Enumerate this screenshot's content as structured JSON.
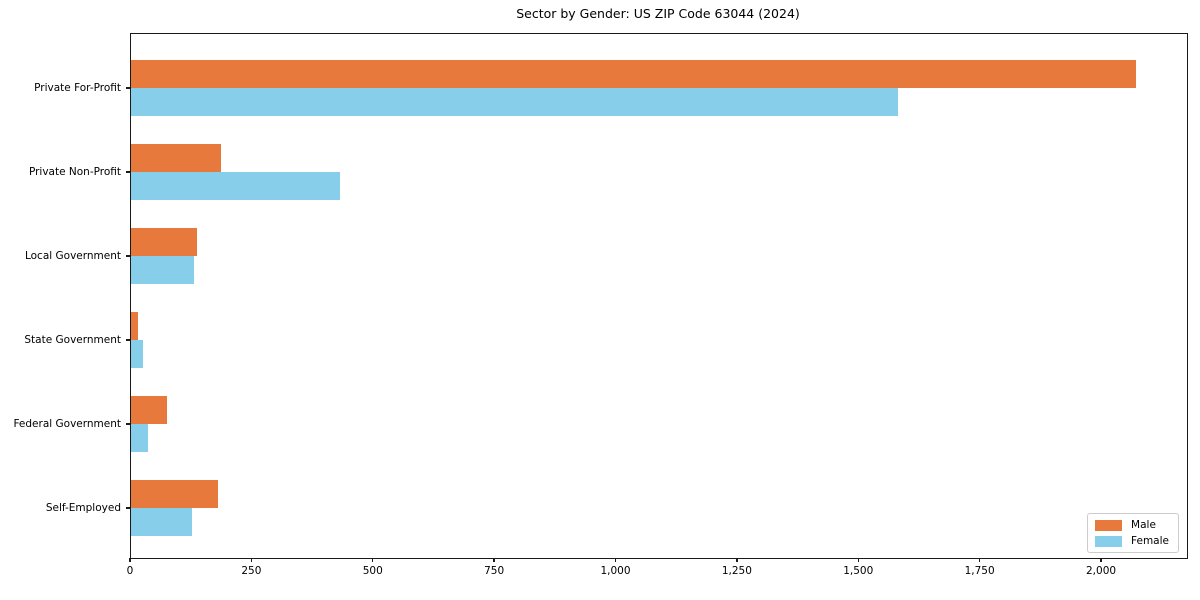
{
  "chart_data": {
    "type": "bar",
    "orientation": "horizontal",
    "title": "Sector by Gender: US ZIP Code 63044 (2024)",
    "categories": [
      "Private For-Profit",
      "Private Non-Profit",
      "Local Government",
      "State Government",
      "Federal Government",
      "Self-Employed"
    ],
    "series": [
      {
        "name": "Male",
        "color": "#E8793C",
        "values": [
          2070,
          185,
          135,
          15,
          75,
          180
        ]
      },
      {
        "name": "Female",
        "color": "#87CEEB",
        "values": [
          1580,
          430,
          130,
          25,
          35,
          125
        ]
      }
    ],
    "xlabel": "",
    "ylabel": "",
    "xlim": [
      0,
      2175
    ],
    "xticks": [
      0,
      250,
      500,
      750,
      1000,
      1250,
      1500,
      1750,
      2000
    ],
    "xtick_labels": [
      "0",
      "250",
      "500",
      "750",
      "1,000",
      "1,250",
      "1,500",
      "1,750",
      "2,000"
    ],
    "legend_position": "lower right",
    "grid": false,
    "background_color": "#ffffff",
    "spine_color": "#1a1a1a"
  }
}
